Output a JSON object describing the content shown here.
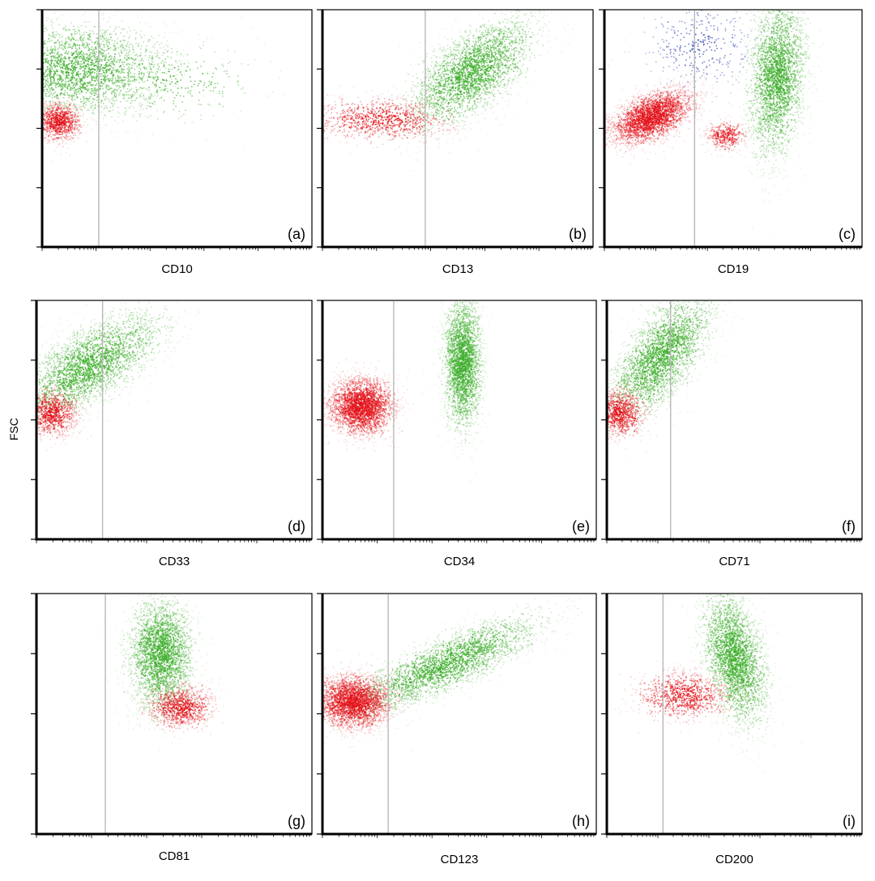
{
  "figure": {
    "y_axis_label": "FSC",
    "colors": {
      "population_green": "#3dae2b",
      "population_red": "#e3141b",
      "gate_line": "#b4b4b4",
      "axis": "#000000",
      "scatter_blue": "#3b4fb8",
      "scatter_purple": "#8a3a9a"
    }
  },
  "chart_data": [
    {
      "id": "a",
      "panel_label": "(a)",
      "type": "scatter",
      "xlabel": "CD10",
      "ylabel": "FSC",
      "x_scale": "log",
      "xlim": [
        0,
        1
      ],
      "ylim": [
        0,
        1
      ],
      "gate_x": 0.21,
      "populations": [
        {
          "color": "green",
          "center": [
            0.12,
            0.75
          ],
          "spread": [
            0.17,
            0.1
          ],
          "tilt": 0.0,
          "density": "high"
        },
        {
          "color": "green",
          "center": [
            0.45,
            0.7
          ],
          "spread": [
            0.18,
            0.08
          ],
          "tilt": 0.0,
          "density": "low"
        },
        {
          "color": "red",
          "center": [
            0.06,
            0.53
          ],
          "spread": [
            0.04,
            0.04
          ],
          "tilt": 0.0,
          "density": "medium"
        }
      ]
    },
    {
      "id": "b",
      "panel_label": "(b)",
      "type": "scatter",
      "xlabel": "CD13",
      "ylabel": "FSC",
      "x_scale": "log",
      "xlim": [
        0,
        1
      ],
      "ylim": [
        0,
        1
      ],
      "gate_x": 0.38,
      "populations": [
        {
          "color": "green",
          "center": [
            0.55,
            0.74
          ],
          "spread": [
            0.11,
            0.11
          ],
          "tilt": 0.6,
          "density": "high"
        },
        {
          "color": "red",
          "center": [
            0.22,
            0.54
          ],
          "spread": [
            0.13,
            0.045
          ],
          "tilt": 0.0,
          "density": "medium"
        }
      ]
    },
    {
      "id": "c",
      "panel_label": "(c)",
      "type": "scatter",
      "xlabel": "CD19",
      "ylabel": "FSC",
      "x_scale": "log",
      "xlim": [
        0,
        1
      ],
      "ylim": [
        0,
        1
      ],
      "gate_x": 0.35,
      "populations": [
        {
          "color": "green",
          "center": [
            0.67,
            0.72
          ],
          "spread": [
            0.055,
            0.17
          ],
          "tilt": 0.1,
          "density": "high"
        },
        {
          "color": "red",
          "center": [
            0.18,
            0.55
          ],
          "spread": [
            0.08,
            0.055
          ],
          "tilt": 0.45,
          "density": "high"
        },
        {
          "color": "red",
          "center": [
            0.47,
            0.47
          ],
          "spread": [
            0.04,
            0.03
          ],
          "tilt": 0.0,
          "density": "low"
        },
        {
          "color": "blue",
          "center": [
            0.37,
            0.85
          ],
          "spread": [
            0.12,
            0.1
          ],
          "tilt": 0.0,
          "density": "low"
        }
      ]
    },
    {
      "id": "d",
      "panel_label": "(d)",
      "type": "scatter",
      "xlabel": "CD33",
      "ylabel": "FSC",
      "x_scale": "log",
      "xlim": [
        0,
        1
      ],
      "ylim": [
        0,
        1
      ],
      "gate_x": 0.24,
      "populations": [
        {
          "color": "green",
          "center": [
            0.19,
            0.73
          ],
          "spread": [
            0.13,
            0.1
          ],
          "tilt": 0.65,
          "density": "high"
        },
        {
          "color": "red",
          "center": [
            0.05,
            0.53
          ],
          "spread": [
            0.05,
            0.05
          ],
          "tilt": 0.0,
          "density": "medium"
        }
      ]
    },
    {
      "id": "e",
      "panel_label": "(e)",
      "type": "scatter",
      "xlabel": "CD34",
      "ylabel": "FSC",
      "x_scale": "log",
      "xlim": [
        0,
        1
      ],
      "ylim": [
        0,
        1
      ],
      "gate_x": 0.26,
      "populations": [
        {
          "color": "green",
          "center": [
            0.51,
            0.74
          ],
          "spread": [
            0.035,
            0.14
          ],
          "tilt": 0.0,
          "density": "high"
        },
        {
          "color": "red",
          "center": [
            0.14,
            0.56
          ],
          "spread": [
            0.06,
            0.06
          ],
          "tilt": 0.0,
          "density": "high"
        }
      ]
    },
    {
      "id": "f",
      "panel_label": "(f)",
      "type": "scatter",
      "xlabel": "CD71",
      "ylabel": "FSC",
      "x_scale": "log",
      "xlim": [
        0,
        1
      ],
      "ylim": [
        0,
        1
      ],
      "gate_x": 0.25,
      "populations": [
        {
          "color": "green",
          "center": [
            0.21,
            0.77
          ],
          "spread": [
            0.09,
            0.13
          ],
          "tilt": 0.6,
          "density": "high"
        },
        {
          "color": "red",
          "center": [
            0.05,
            0.53
          ],
          "spread": [
            0.05,
            0.05
          ],
          "tilt": 0.0,
          "density": "medium"
        }
      ]
    },
    {
      "id": "g",
      "panel_label": "(g)",
      "type": "scatter",
      "xlabel": "CD81",
      "ylabel": "FSC",
      "x_scale": "log",
      "xlim": [
        0,
        1
      ],
      "ylim": [
        0,
        1
      ],
      "gate_x": 0.25,
      "populations": [
        {
          "color": "green",
          "center": [
            0.45,
            0.75
          ],
          "spread": [
            0.06,
            0.12
          ],
          "tilt": 0.0,
          "density": "high"
        },
        {
          "color": "red",
          "center": [
            0.52,
            0.53
          ],
          "spread": [
            0.06,
            0.045
          ],
          "tilt": 0.0,
          "density": "medium"
        }
      ]
    },
    {
      "id": "h",
      "panel_label": "(h)",
      "type": "scatter",
      "xlabel": "CD123",
      "ylabel": "FSC",
      "x_scale": "log",
      "xlim": [
        0,
        1
      ],
      "ylim": [
        0,
        1
      ],
      "gate_x": 0.24,
      "populations": [
        {
          "color": "green",
          "center": [
            0.45,
            0.71
          ],
          "spread": [
            0.17,
            0.07
          ],
          "tilt": 0.7,
          "density": "high"
        },
        {
          "color": "red",
          "center": [
            0.11,
            0.55
          ],
          "spread": [
            0.07,
            0.055
          ],
          "tilt": 0.0,
          "density": "high"
        }
      ]
    },
    {
      "id": "i",
      "panel_label": "(i)",
      "type": "scatter",
      "xlabel": "CD200",
      "ylabel": "FSC",
      "x_scale": "log",
      "xlim": [
        0,
        1
      ],
      "ylim": [
        0,
        1
      ],
      "gate_x": 0.22,
      "populations": [
        {
          "color": "green",
          "center": [
            0.5,
            0.73
          ],
          "spread": [
            0.06,
            0.14
          ],
          "tilt": -0.25,
          "density": "high"
        },
        {
          "color": "red",
          "center": [
            0.3,
            0.58
          ],
          "spread": [
            0.09,
            0.05
          ],
          "tilt": 0.0,
          "density": "medium"
        }
      ]
    }
  ]
}
